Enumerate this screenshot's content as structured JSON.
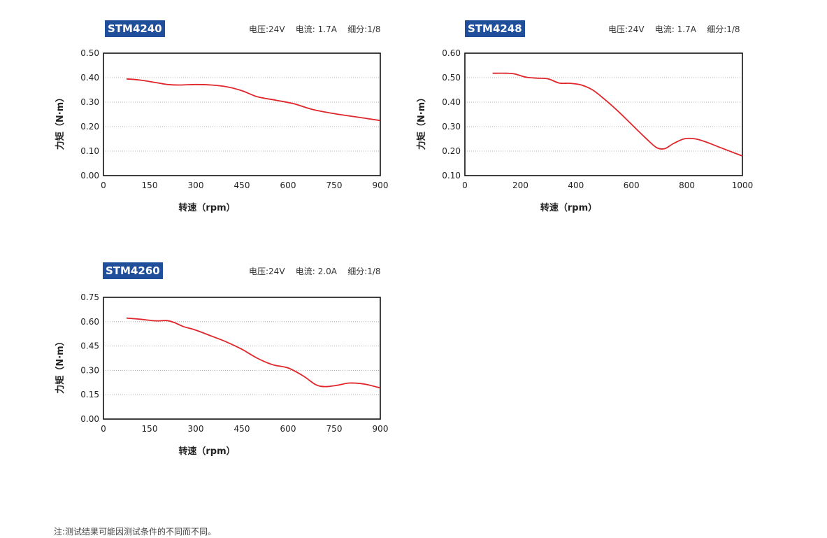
{
  "footnote": "注:测试结果可能因测试条件的不同而不同。",
  "chart_data": [
    {
      "type": "line",
      "model": "STM4240",
      "specs": "电压:24V    电流: 1.7A    细分:1/8",
      "xlabel": "转速（rpm）",
      "ylabel": "力矩（N·m）",
      "xlim": [
        0,
        900
      ],
      "ylim": [
        0,
        0.5
      ],
      "xticks": [
        "0",
        "150",
        "300",
        "450",
        "600",
        "750",
        "900"
      ],
      "yticks": [
        "0.00",
        "0.10",
        "0.20",
        "0.30",
        "0.40",
        "0.50"
      ],
      "grid": true,
      "line_color": "#e0262b",
      "x": [
        75,
        120,
        170,
        210,
        250,
        300,
        350,
        400,
        450,
        500,
        560,
        620,
        680,
        750,
        820,
        900
      ],
      "y": [
        0.395,
        0.39,
        0.38,
        0.372,
        0.37,
        0.372,
        0.37,
        0.363,
        0.347,
        0.322,
        0.308,
        0.293,
        0.27,
        0.253,
        0.24,
        0.225
      ]
    },
    {
      "type": "line",
      "model": "STM4248",
      "specs": "电压:24V    电流: 1.7A    细分:1/8",
      "xlabel": "转速（rpm）",
      "ylabel": "力矩（N·m）",
      "xlim": [
        0,
        1000
      ],
      "ylim": [
        0.1,
        0.6
      ],
      "xticks": [
        "0",
        "200",
        "400",
        "600",
        "800",
        "1000"
      ],
      "yticks": [
        "0.10",
        "0.20",
        "0.30",
        "0.40",
        "0.50",
        "0.60"
      ],
      "grid": true,
      "line_color": "#e0262b",
      "x": [
        100,
        150,
        180,
        220,
        260,
        300,
        340,
        380,
        420,
        460,
        500,
        550,
        600,
        650,
        690,
        720,
        750,
        790,
        830,
        870,
        920,
        1000
      ],
      "y": [
        0.518,
        0.518,
        0.515,
        0.502,
        0.498,
        0.495,
        0.478,
        0.477,
        0.47,
        0.45,
        0.415,
        0.365,
        0.31,
        0.255,
        0.215,
        0.21,
        0.23,
        0.25,
        0.25,
        0.237,
        0.215,
        0.18
      ]
    },
    {
      "type": "line",
      "model": "STM4260",
      "specs": "电压:24V    电流: 2.0A    细分:1/8",
      "xlabel": "转速（rpm）",
      "ylabel": "力矩（N·m）",
      "xlim": [
        0,
        900
      ],
      "ylim": [
        0,
        0.75
      ],
      "xticks": [
        "0",
        "150",
        "300",
        "450",
        "600",
        "750",
        "900"
      ],
      "yticks": [
        "0.00",
        "0.15",
        "0.30",
        "0.45",
        "0.60",
        "0.75"
      ],
      "grid": true,
      "line_color": "#e0262b",
      "x": [
        75,
        120,
        170,
        205,
        230,
        260,
        300,
        350,
        400,
        450,
        500,
        550,
        600,
        650,
        690,
        720,
        760,
        800,
        850,
        900
      ],
      "y": [
        0.622,
        0.615,
        0.605,
        0.607,
        0.595,
        0.57,
        0.548,
        0.512,
        0.475,
        0.43,
        0.375,
        0.335,
        0.315,
        0.265,
        0.212,
        0.2,
        0.208,
        0.222,
        0.215,
        0.192
      ]
    }
  ]
}
